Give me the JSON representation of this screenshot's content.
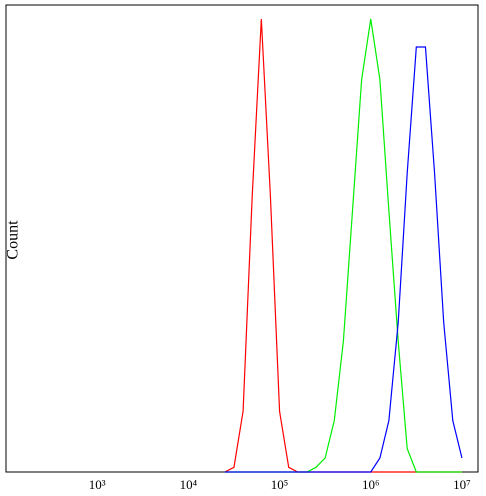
{
  "chart_data": {
    "type": "line",
    "y_label": "Count",
    "x_scale": "log",
    "xlim": [
      100,
      15000000
    ],
    "ylim": [
      0,
      100
    ],
    "xticks": [
      {
        "value": 1000,
        "label": "10³"
      },
      {
        "value": 10000,
        "label": "10⁴"
      },
      {
        "value": 100000,
        "label": "10⁵"
      },
      {
        "value": 1000000,
        "label": "10⁶"
      },
      {
        "value": 10000000,
        "label": "10⁷"
      }
    ],
    "x": [
      25100,
      31600,
      39800,
      50100,
      63100,
      79400,
      100000,
      126000,
      158000,
      200000,
      251000,
      316000,
      398000,
      501000,
      631000,
      794000,
      1000000,
      1260000,
      1580000,
      2000000,
      2510000,
      3160000,
      3980000,
      5010000,
      6310000,
      7940000,
      10000000
    ],
    "series": [
      {
        "color": "#ff0000",
        "values": [
          0,
          1,
          13,
          59,
          97,
          59,
          13,
          1,
          0,
          0,
          0,
          0,
          0,
          0,
          0,
          0,
          0,
          0,
          0,
          0,
          0,
          0,
          0,
          0,
          0,
          0,
          0
        ]
      },
      {
        "color": "#00ee00",
        "values": [
          0,
          0,
          0,
          0,
          0,
          0,
          0,
          0,
          0,
          0,
          1,
          3,
          11,
          28,
          56,
          84,
          97,
          84,
          56,
          28,
          5,
          0,
          0,
          0,
          0,
          0,
          0
        ]
      },
      {
        "color": "#0000ff",
        "values": [
          0,
          0,
          0,
          0,
          0,
          0,
          0,
          0,
          0,
          0,
          0,
          0,
          0,
          0,
          0,
          0,
          0,
          3,
          11,
          32,
          64,
          91,
          91,
          64,
          32,
          11,
          3
        ]
      }
    ]
  }
}
